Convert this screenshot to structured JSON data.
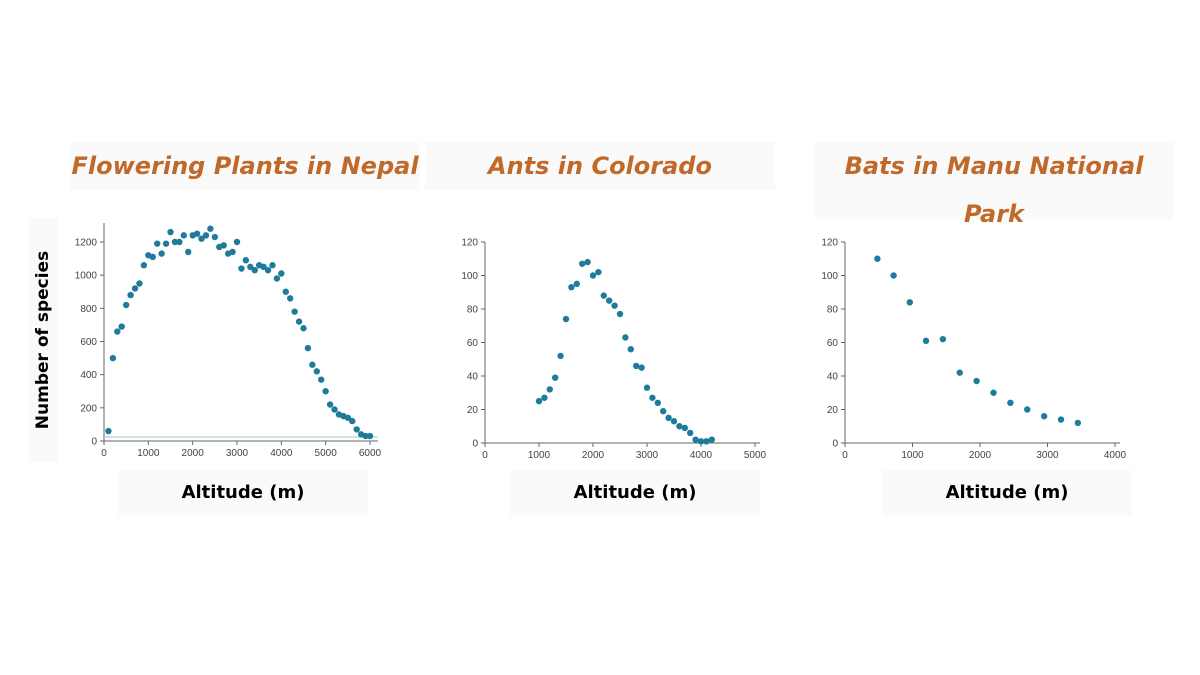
{
  "y_axis_label": "Number of species",
  "colors": {
    "title": "#c0692b",
    "point": "#1f7b9b",
    "axis": "#666666"
  },
  "chart_data": [
    {
      "type": "scatter",
      "title": "Flowering Plants in Nepal",
      "xlabel": "Altitude (m)",
      "ylabel": "Number of species",
      "xlim": [
        0,
        6000
      ],
      "ylim": [
        0,
        1300
      ],
      "xticks": [
        0,
        1000,
        2000,
        3000,
        4000,
        5000,
        6000
      ],
      "yticks": [
        0,
        200,
        400,
        600,
        800,
        1000,
        1200
      ],
      "points": [
        [
          100,
          60
        ],
        [
          200,
          500
        ],
        [
          300,
          660
        ],
        [
          400,
          690
        ],
        [
          500,
          820
        ],
        [
          600,
          880
        ],
        [
          700,
          920
        ],
        [
          800,
          950
        ],
        [
          900,
          1060
        ],
        [
          1000,
          1120
        ],
        [
          1100,
          1110
        ],
        [
          1200,
          1190
        ],
        [
          1300,
          1130
        ],
        [
          1400,
          1190
        ],
        [
          1500,
          1260
        ],
        [
          1600,
          1200
        ],
        [
          1700,
          1200
        ],
        [
          1800,
          1240
        ],
        [
          1900,
          1140
        ],
        [
          2000,
          1240
        ],
        [
          2100,
          1250
        ],
        [
          2200,
          1220
        ],
        [
          2300,
          1240
        ],
        [
          2400,
          1280
        ],
        [
          2500,
          1230
        ],
        [
          2600,
          1170
        ],
        [
          2700,
          1180
        ],
        [
          2800,
          1130
        ],
        [
          2900,
          1140
        ],
        [
          3000,
          1200
        ],
        [
          3100,
          1040
        ],
        [
          3200,
          1090
        ],
        [
          3300,
          1050
        ],
        [
          3400,
          1030
        ],
        [
          3500,
          1060
        ],
        [
          3600,
          1050
        ],
        [
          3700,
          1030
        ],
        [
          3800,
          1060
        ],
        [
          3900,
          980
        ],
        [
          4000,
          1010
        ],
        [
          4100,
          900
        ],
        [
          4200,
          860
        ],
        [
          4300,
          780
        ],
        [
          4400,
          720
        ],
        [
          4500,
          680
        ],
        [
          4600,
          560
        ],
        [
          4700,
          460
        ],
        [
          4800,
          420
        ],
        [
          4900,
          370
        ],
        [
          5000,
          300
        ],
        [
          5100,
          220
        ],
        [
          5200,
          190
        ],
        [
          5300,
          160
        ],
        [
          5400,
          150
        ],
        [
          5500,
          140
        ],
        [
          5600,
          120
        ],
        [
          5700,
          70
        ],
        [
          5800,
          40
        ],
        [
          5900,
          30
        ],
        [
          6000,
          30
        ]
      ]
    },
    {
      "type": "scatter",
      "title": "Ants in Colorado",
      "xlabel": "Altitude (m)",
      "xlim": [
        0,
        5000
      ],
      "ylim": [
        0,
        120
      ],
      "xticks": [
        0,
        1000,
        2000,
        3000,
        4000,
        5000
      ],
      "yticks": [
        0,
        20,
        40,
        60,
        80,
        100,
        120
      ],
      "points": [
        [
          1000,
          25
        ],
        [
          1100,
          27
        ],
        [
          1200,
          32
        ],
        [
          1300,
          39
        ],
        [
          1400,
          52
        ],
        [
          1500,
          74
        ],
        [
          1600,
          93
        ],
        [
          1700,
          95
        ],
        [
          1800,
          107
        ],
        [
          1900,
          108
        ],
        [
          2000,
          100
        ],
        [
          2100,
          102
        ],
        [
          2200,
          88
        ],
        [
          2300,
          85
        ],
        [
          2400,
          82
        ],
        [
          2500,
          77
        ],
        [
          2600,
          63
        ],
        [
          2700,
          56
        ],
        [
          2800,
          46
        ],
        [
          2900,
          45
        ],
        [
          3000,
          33
        ],
        [
          3100,
          27
        ],
        [
          3200,
          24
        ],
        [
          3300,
          19
        ],
        [
          3400,
          15
        ],
        [
          3500,
          13
        ],
        [
          3600,
          10
        ],
        [
          3700,
          9
        ],
        [
          3800,
          6
        ],
        [
          3900,
          2
        ],
        [
          4000,
          1
        ],
        [
          4100,
          1
        ],
        [
          4200,
          2
        ]
      ]
    },
    {
      "type": "scatter",
      "title": "Bats in Manu National Park",
      "xlabel": "Altitude (m)",
      "xlim": [
        0,
        4000
      ],
      "ylim": [
        0,
        120
      ],
      "xticks": [
        0,
        1000,
        2000,
        3000,
        4000
      ],
      "yticks": [
        0,
        20,
        40,
        60,
        80,
        100,
        120
      ],
      "points": [
        [
          480,
          110
        ],
        [
          720,
          100
        ],
        [
          960,
          84
        ],
        [
          1200,
          61
        ],
        [
          1450,
          62
        ],
        [
          1700,
          42
        ],
        [
          1950,
          37
        ],
        [
          2200,
          30
        ],
        [
          2450,
          24
        ],
        [
          2700,
          20
        ],
        [
          2950,
          16
        ],
        [
          3200,
          14
        ],
        [
          3450,
          12
        ]
      ]
    }
  ]
}
